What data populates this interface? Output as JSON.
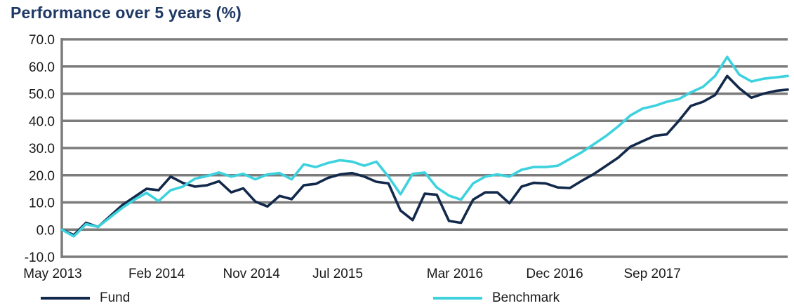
{
  "title": "Performance over 5 years (%)",
  "colors": {
    "title_text": "#1F3864",
    "fund_line": "#13294B",
    "benchmark_line": "#3DD2DE",
    "gridline": "#7C7C7C",
    "axis_text": "#1A1A1A",
    "background": "#FFFFFF"
  },
  "legend": {
    "fund_label": "Fund",
    "benchmark_label": "Benchmark"
  },
  "chart_data": {
    "type": "line",
    "title": "Performance over 5 years (%)",
    "grid": "horizontal",
    "legend_position": "bottom",
    "ylim": [
      -10,
      70
    ],
    "y_tick_step": 10,
    "y_tick_labels": [
      "70.0",
      "60.0",
      "50.0",
      "40.0",
      "30.0",
      "20.0",
      "10.0",
      "0.0",
      "-10.0"
    ],
    "x_tick_labels": [
      "May 2013",
      "Feb 2014",
      "Nov 2014",
      "Jul 2015",
      "Mar 2016",
      "Dec 2016",
      "Sep 2017"
    ],
    "x_tick_indices": [
      0,
      9,
      18,
      26,
      34,
      43,
      52
    ],
    "x": [
      "May 2013",
      "Jun 2013",
      "Jul 2013",
      "Aug 2013",
      "Sep 2013",
      "Oct 2013",
      "Nov 2013",
      "Dec 2013",
      "Jan 2014",
      "Feb 2014",
      "Mar 2014",
      "Apr 2014",
      "May 2014",
      "Jun 2014",
      "Jul 2014",
      "Aug 2014",
      "Sep 2014",
      "Oct 2014",
      "Nov 2014",
      "Dec 2014",
      "Jan 2015",
      "Feb 2015",
      "Mar 2015",
      "Apr 2015",
      "May 2015",
      "Jun 2015",
      "Jul 2015",
      "Aug 2015",
      "Sep 2015",
      "Oct 2015",
      "Nov 2015",
      "Dec 2015",
      "Jan 2016",
      "Feb 2016",
      "Mar 2016",
      "Apr 2016",
      "May 2016",
      "Jun 2016",
      "Jul 2016",
      "Aug 2016",
      "Sep 2016",
      "Oct 2016",
      "Nov 2016",
      "Dec 2016",
      "Jan 2017",
      "Feb 2017",
      "Mar 2017",
      "Apr 2017",
      "May 2017",
      "Jun 2017",
      "Jul 2017",
      "Aug 2017",
      "Sep 2017",
      "Oct 2017",
      "Nov 2017",
      "Dec 2017",
      "Jan 2018",
      "Feb 2018",
      "Mar 2018",
      "Apr 2018",
      "May 2018"
    ],
    "series": [
      {
        "name": "Fund",
        "color": "#13294B",
        "values": [
          0.0,
          -2.0,
          2.5,
          1.0,
          5.0,
          9.0,
          12.0,
          15.0,
          14.5,
          19.5,
          17.2,
          15.8,
          16.3,
          17.8,
          13.7,
          15.2,
          10.3,
          8.5,
          12.4,
          11.2,
          16.3,
          16.8,
          19.0,
          20.3,
          20.8,
          19.5,
          17.6,
          17.0,
          7.0,
          3.5,
          13.2,
          12.8,
          3.2,
          2.5,
          11.0,
          13.7,
          13.7,
          9.7,
          15.8,
          17.2,
          17.0,
          15.5,
          15.3,
          18.0,
          20.5,
          23.5,
          26.5,
          30.5,
          32.5,
          34.5,
          35.0,
          40.0,
          45.5,
          47.0,
          49.5,
          56.5,
          52.0,
          48.5,
          50.0,
          51.0,
          51.5
        ]
      },
      {
        "name": "Benchmark",
        "color": "#3DD2DE",
        "values": [
          0.0,
          -2.5,
          2.0,
          1.0,
          4.5,
          8.0,
          11.0,
          13.5,
          10.5,
          14.5,
          15.8,
          18.7,
          19.7,
          21.0,
          19.5,
          20.5,
          18.5,
          20.3,
          20.8,
          18.5,
          24.0,
          23.0,
          24.5,
          25.5,
          25.0,
          23.5,
          25.0,
          19.5,
          13.0,
          20.5,
          21.0,
          15.5,
          12.5,
          11.0,
          17.0,
          19.5,
          20.3,
          19.5,
          22.0,
          23.0,
          23.0,
          23.5,
          26.0,
          28.5,
          31.5,
          34.5,
          38.0,
          42.0,
          44.5,
          45.5,
          47.0,
          48.0,
          50.5,
          52.5,
          56.5,
          63.5,
          57.0,
          54.5,
          55.5,
          56.0,
          56.5
        ]
      }
    ]
  }
}
